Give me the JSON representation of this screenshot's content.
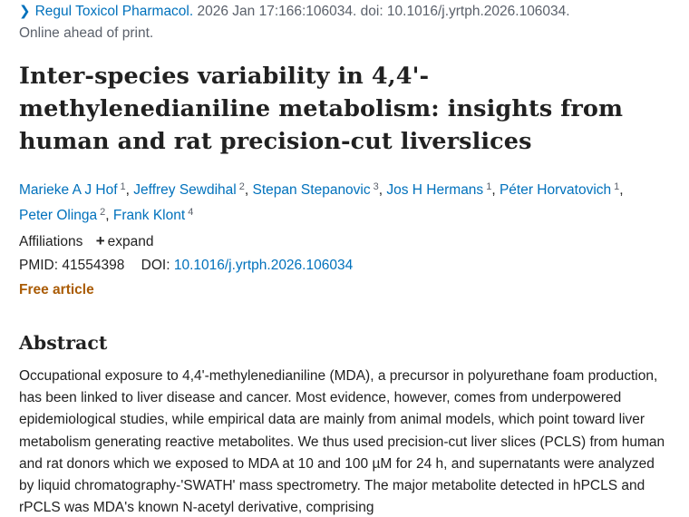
{
  "citation": {
    "journal": "Regul Toxicol Pharmacol.",
    "details": "2026 Jan 17:166:106034. doi: 10.1016/j.yrtph.2026.106034.",
    "status": "Online ahead of print."
  },
  "article": {
    "title": "Inter-species variability in 4,4'-methylenedianiline metabolism: insights from human and rat precision-cut liverslices"
  },
  "authors": [
    {
      "name": "Marieke A J Hof",
      "affiliation": "1"
    },
    {
      "name": "Jeffrey Sewdihal",
      "affiliation": "2"
    },
    {
      "name": "Stepan Stepanovic",
      "affiliation": "3"
    },
    {
      "name": "Jos H Hermans",
      "affiliation": "1"
    },
    {
      "name": "Péter Horvatovich",
      "affiliation": "1"
    },
    {
      "name": "Peter Olinga",
      "affiliation": "2"
    },
    {
      "name": "Frank Klont",
      "affiliation": "4"
    }
  ],
  "affiliations": {
    "label": "Affiliations",
    "expand_label": "expand"
  },
  "identifiers": {
    "pmid_label": "PMID:",
    "pmid": "41554398",
    "doi_label": "DOI:",
    "doi": "10.1016/j.yrtph.2026.106034"
  },
  "free_article_label": "Free article",
  "abstract": {
    "heading": "Abstract",
    "text": "Occupational exposure to 4,4'-methylenedianiline (MDA), a precursor in polyurethane foam production, has been linked to liver disease and cancer. Most evidence, however, comes from underpowered epidemiological studies, while empirical data are mainly from animal models, which point toward liver metabolism generating reactive metabolites. We thus used precision-cut liver slices (PCLS) from human and rat donors which we exposed to MDA at 10 and 100 µM for 24 h, and supernatants were analyzed by liquid chromatography-'SWATH' mass spectrometry. The major metabolite detected in hPCLS and rPCLS was MDA's known N-acetyl derivative, comprising"
  },
  "colors": {
    "link": "#0071bc",
    "text": "#212121",
    "muted": "#5b616b",
    "free_article": "#aa5c06"
  }
}
